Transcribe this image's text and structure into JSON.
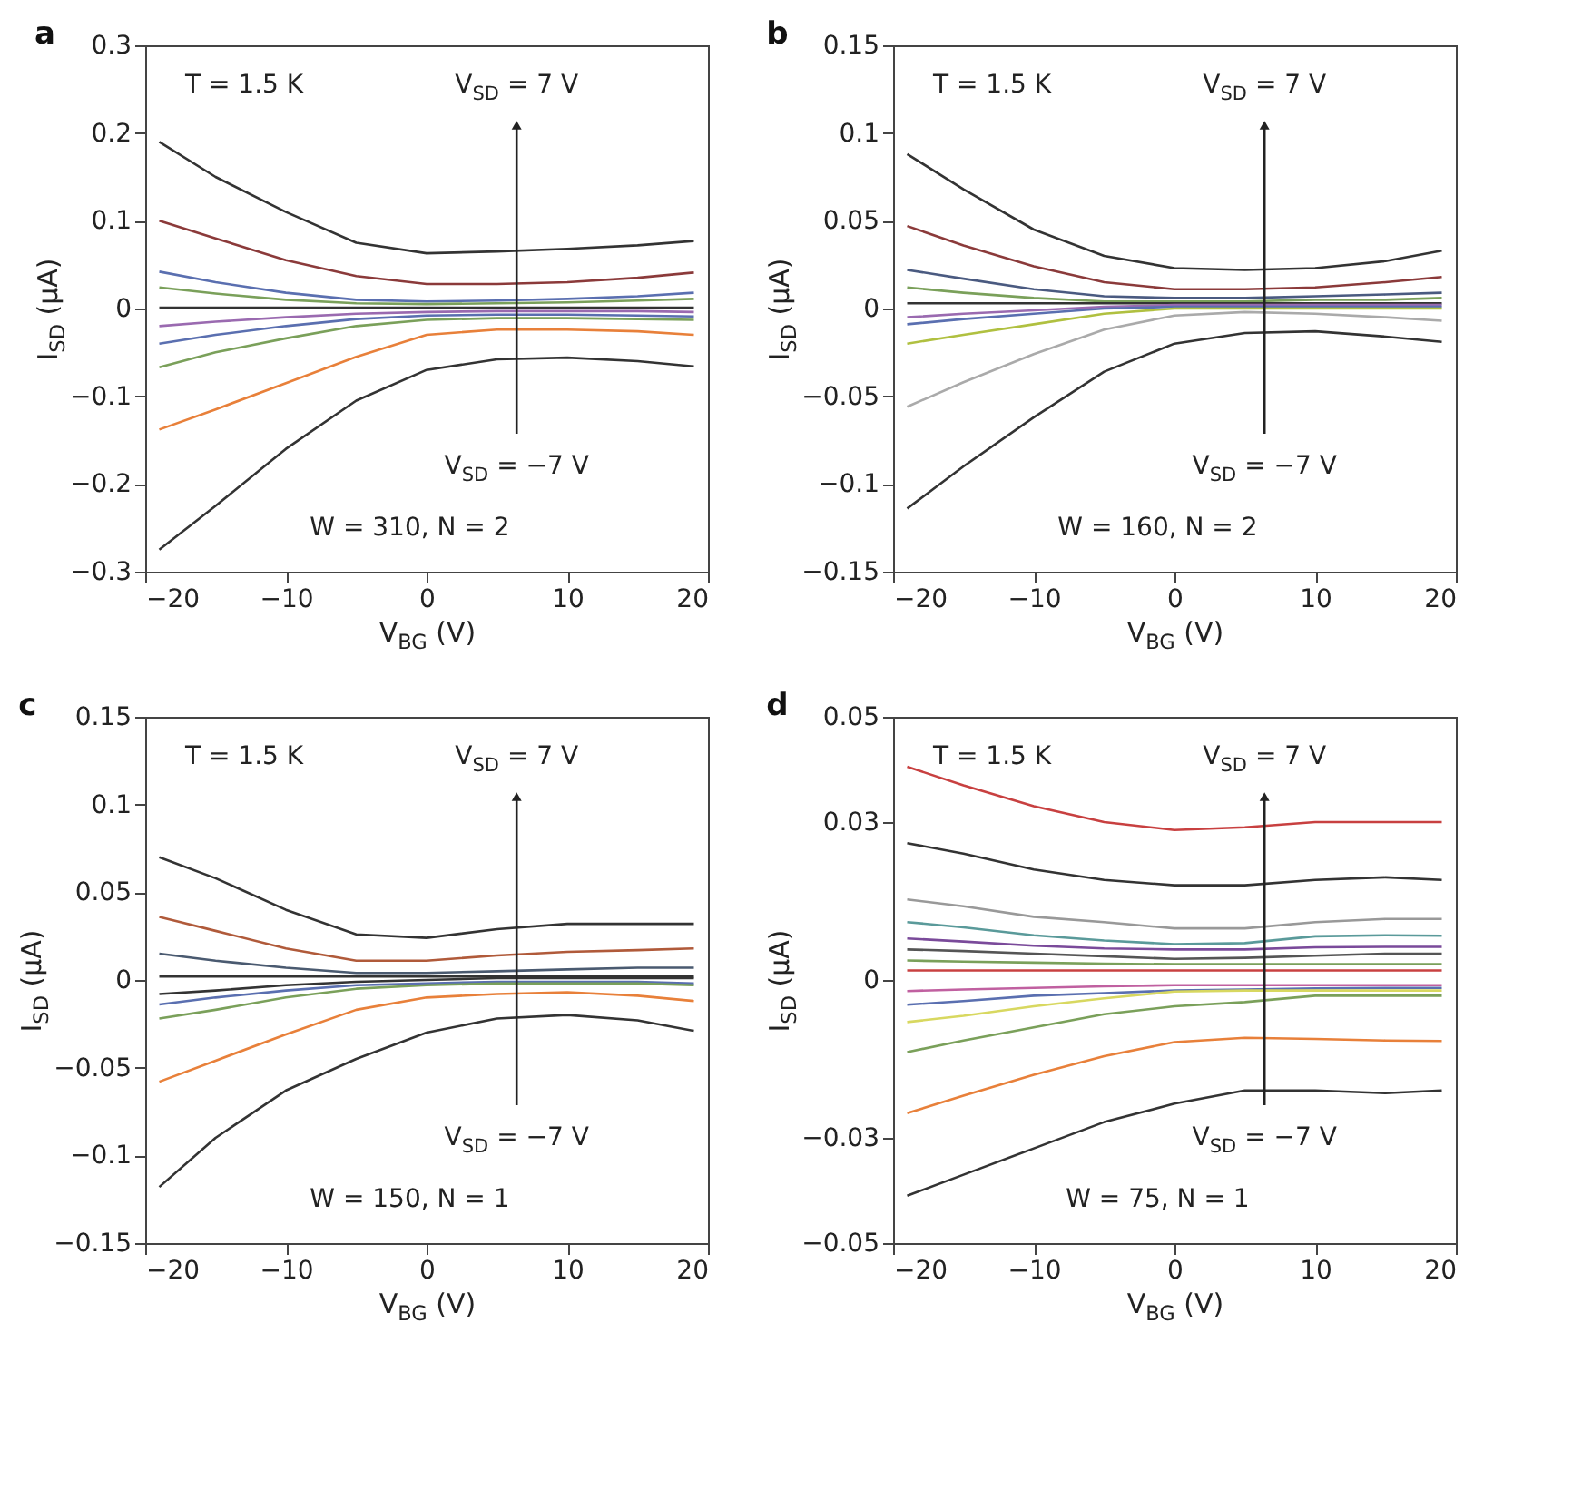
{
  "chart_data": [
    {
      "type": "line",
      "title": "a",
      "xlabel": "V$_{BG}$ (V)",
      "ylabel": "I$_{SD}$ (μA)",
      "xlim": [
        -20,
        20
      ],
      "xticks": [
        -20,
        -10,
        0,
        10,
        20
      ],
      "ylim": [
        -0.3,
        0.3
      ],
      "yticks": [
        -0.3,
        -0.2,
        -0.1,
        0,
        0.1,
        0.2,
        0.3
      ],
      "x": [
        -19,
        -15,
        -10,
        -5,
        0,
        5,
        10,
        15,
        19
      ],
      "series": [
        {
          "color": "#333333",
          "values": [
            0.19,
            0.15,
            0.11,
            0.075,
            0.063,
            0.065,
            0.068,
            0.072,
            0.077
          ]
        },
        {
          "color": "#8b3a3a",
          "values": [
            0.1,
            0.08,
            0.055,
            0.037,
            0.028,
            0.028,
            0.03,
            0.035,
            0.041
          ]
        },
        {
          "color": "#5a6fb0",
          "values": [
            0.042,
            0.03,
            0.018,
            0.01,
            0.008,
            0.009,
            0.011,
            0.014,
            0.018
          ]
        },
        {
          "color": "#7aa05a",
          "values": [
            0.024,
            0.017,
            0.01,
            0.006,
            0.005,
            0.006,
            0.007,
            0.009,
            0.011
          ]
        },
        {
          "color": "#333333",
          "values": [
            0.001,
            0.001,
            0.001,
            0.001,
            0.001,
            0.001,
            0.001,
            0.001,
            0.001
          ]
        },
        {
          "color": "#9a6ab0",
          "values": [
            -0.02,
            -0.015,
            -0.01,
            -0.006,
            -0.004,
            -0.003,
            -0.003,
            -0.003,
            -0.004
          ]
        },
        {
          "color": "#5a6fb0",
          "values": [
            -0.04,
            -0.03,
            -0.02,
            -0.012,
            -0.008,
            -0.007,
            -0.007,
            -0.008,
            -0.009
          ]
        },
        {
          "color": "#7aa05a",
          "values": [
            -0.067,
            -0.05,
            -0.034,
            -0.02,
            -0.013,
            -0.011,
            -0.011,
            -0.012,
            -0.013
          ]
        },
        {
          "color": "#e8803a",
          "values": [
            -0.138,
            -0.115,
            -0.085,
            -0.055,
            -0.03,
            -0.024,
            -0.024,
            -0.026,
            -0.03
          ]
        },
        {
          "color": "#333333",
          "values": [
            -0.275,
            -0.225,
            -0.16,
            -0.105,
            -0.07,
            -0.058,
            -0.056,
            -0.06,
            -0.066
          ]
        }
      ],
      "annotations": [
        "T = 1.5 K",
        "V$_{SD}$ = 7 V",
        "V$_{SD}$ = −7 V",
        "W = 310, N = 2"
      ]
    },
    {
      "type": "line",
      "title": "b",
      "xlabel": "V$_{BG}$ (V)",
      "ylabel": "I$_{SD}$ (μA)",
      "xlim": [
        -20,
        20
      ],
      "xticks": [
        -20,
        -10,
        0,
        10,
        20
      ],
      "ylim": [
        -0.15,
        0.15
      ],
      "yticks": [
        -0.15,
        -0.1,
        -0.05,
        0,
        0.05,
        0.1,
        0.15
      ],
      "x": [
        -19,
        -15,
        -10,
        -5,
        0,
        5,
        10,
        15,
        19
      ],
      "series": [
        {
          "color": "#333333",
          "values": [
            0.088,
            0.068,
            0.045,
            0.03,
            0.023,
            0.022,
            0.023,
            0.027,
            0.033
          ]
        },
        {
          "color": "#8b3a3a",
          "values": [
            0.047,
            0.036,
            0.024,
            0.015,
            0.011,
            0.011,
            0.012,
            0.015,
            0.018
          ]
        },
        {
          "color": "#4a5a80",
          "values": [
            0.022,
            0.017,
            0.011,
            0.007,
            0.006,
            0.006,
            0.007,
            0.008,
            0.009
          ]
        },
        {
          "color": "#7aa05a",
          "values": [
            0.012,
            0.009,
            0.006,
            0.004,
            0.004,
            0.004,
            0.005,
            0.005,
            0.006
          ]
        },
        {
          "color": "#333333",
          "values": [
            0.003,
            0.003,
            0.003,
            0.003,
            0.003,
            0.003,
            0.003,
            0.003,
            0.003
          ]
        },
        {
          "color": "#9a6ab0",
          "values": [
            -0.005,
            -0.003,
            -0.001,
            0.001,
            0.002,
            0.002,
            0.002,
            0.002,
            0.002
          ]
        },
        {
          "color": "#5a6fb0",
          "values": [
            -0.009,
            -0.006,
            -0.003,
            0,
            0.001,
            0.001,
            0.001,
            0.001,
            0.001
          ]
        },
        {
          "color": "#b0c040",
          "values": [
            -0.02,
            -0.015,
            -0.009,
            -0.003,
            0,
            0,
            0,
            0,
            0
          ]
        },
        {
          "color": "#aaaaaa",
          "values": [
            -0.056,
            -0.042,
            -0.026,
            -0.012,
            -0.004,
            -0.002,
            -0.003,
            -0.005,
            -0.007
          ]
        },
        {
          "color": "#333333",
          "values": [
            -0.114,
            -0.09,
            -0.062,
            -0.036,
            -0.02,
            -0.014,
            -0.013,
            -0.016,
            -0.019
          ]
        }
      ],
      "annotations": [
        "T = 1.5 K",
        "V$_{SD}$ = 7 V",
        "V$_{SD}$ = −7 V",
        "W = 160, N = 2"
      ]
    },
    {
      "type": "line",
      "title": "c",
      "xlabel": "V$_{BG}$ (V)",
      "ylabel": "I$_{SD}$ (μA)",
      "xlim": [
        -20,
        20
      ],
      "xticks": [
        -20,
        -10,
        0,
        10,
        20
      ],
      "ylim": [
        -0.15,
        0.15
      ],
      "yticks": [
        -0.15,
        -0.1,
        -0.05,
        0,
        0.05,
        0.1,
        0.15
      ],
      "x": [
        -19,
        -15,
        -10,
        -5,
        0,
        5,
        10,
        15,
        19
      ],
      "series": [
        {
          "color": "#333333",
          "values": [
            0.07,
            0.058,
            0.04,
            0.026,
            0.024,
            0.029,
            0.032,
            0.032,
            0.032
          ]
        },
        {
          "color": "#b05a3a",
          "values": [
            0.036,
            0.028,
            0.018,
            0.011,
            0.011,
            0.014,
            0.016,
            0.017,
            0.018
          ]
        },
        {
          "color": "#4a5a70",
          "values": [
            0.015,
            0.011,
            0.007,
            0.004,
            0.004,
            0.005,
            0.006,
            0.007,
            0.007
          ]
        },
        {
          "color": "#333333",
          "values": [
            0.002,
            0.002,
            0.002,
            0.002,
            0.002,
            0.002,
            0.002,
            0.002,
            0.002
          ]
        },
        {
          "color": "#333333",
          "values": [
            -0.008,
            -0.006,
            -0.003,
            -0.001,
            0,
            0.001,
            0.001,
            0.001,
            0.001
          ]
        },
        {
          "color": "#5a6fb0",
          "values": [
            -0.014,
            -0.01,
            -0.006,
            -0.003,
            -0.002,
            -0.001,
            -0.001,
            -0.001,
            -0.002
          ]
        },
        {
          "color": "#7aa05a",
          "values": [
            -0.022,
            -0.017,
            -0.01,
            -0.005,
            -0.003,
            -0.002,
            -0.002,
            -0.002,
            -0.003
          ]
        },
        {
          "color": "#e8803a",
          "values": [
            -0.058,
            -0.046,
            -0.031,
            -0.017,
            -0.01,
            -0.008,
            -0.007,
            -0.009,
            -0.012
          ]
        },
        {
          "color": "#333333",
          "values": [
            -0.118,
            -0.09,
            -0.063,
            -0.045,
            -0.03,
            -0.022,
            -0.02,
            -0.023,
            -0.029
          ]
        }
      ],
      "annotations": [
        "T = 1.5 K",
        "V$_{SD}$ = 7 V",
        "V$_{SD}$ = −7 V",
        "W = 150, N = 1"
      ]
    },
    {
      "type": "line",
      "title": "d",
      "xlabel": "V$_{BG}$ (V)",
      "ylabel": "I$_{SD}$ (μA)",
      "xlim": [
        -20,
        20
      ],
      "xticks": [
        -20,
        -10,
        0,
        10,
        20
      ],
      "ylim": [
        -0.05,
        0.05
      ],
      "yticks": [
        -0.05,
        -0.03,
        0,
        0.03,
        0.05
      ],
      "x": [
        -19,
        -15,
        -10,
        -5,
        0,
        5,
        10,
        15,
        19
      ],
      "series": [
        {
          "color": "#c84040",
          "values": [
            0.0405,
            0.037,
            0.033,
            0.03,
            0.0285,
            0.029,
            0.03,
            0.03,
            0.03
          ]
        },
        {
          "color": "#333333",
          "values": [
            0.026,
            0.024,
            0.021,
            0.019,
            0.018,
            0.018,
            0.019,
            0.0195,
            0.019
          ]
        },
        {
          "color": "#999999",
          "values": [
            0.0153,
            0.014,
            0.012,
            0.011,
            0.0098,
            0.0098,
            0.011,
            0.0116,
            0.0116
          ]
        },
        {
          "color": "#5a9a9a",
          "values": [
            0.011,
            0.01,
            0.0085,
            0.0075,
            0.0068,
            0.007,
            0.0083,
            0.0085,
            0.0084
          ]
        },
        {
          "color": "#7a4a9a",
          "values": [
            0.0079,
            0.0073,
            0.0065,
            0.006,
            0.0058,
            0.0058,
            0.0062,
            0.0063,
            0.0063
          ]
        },
        {
          "color": "#555555",
          "values": [
            0.0058,
            0.0055,
            0.005,
            0.0045,
            0.004,
            0.0042,
            0.0046,
            0.005,
            0.005
          ]
        },
        {
          "color": "#7aa05a",
          "values": [
            0.0037,
            0.0035,
            0.0033,
            0.0031,
            0.003,
            0.003,
            0.003,
            0.003,
            0.003
          ]
        },
        {
          "color": "#c84040",
          "values": [
            0.0018,
            0.0018,
            0.0018,
            0.0018,
            0.0018,
            0.0018,
            0.0018,
            0.0018,
            0.0018
          ]
        },
        {
          "color": "#c060a0",
          "values": [
            -0.0021,
            -0.0018,
            -0.0015,
            -0.0012,
            -0.001,
            -0.001,
            -0.001,
            -0.001,
            -0.001
          ]
        },
        {
          "color": "#5a6fb0",
          "values": [
            -0.0047,
            -0.004,
            -0.003,
            -0.0025,
            -0.002,
            -0.0018,
            -0.0016,
            -0.0015,
            -0.0015
          ]
        },
        {
          "color": "#d8d860",
          "values": [
            -0.008,
            -0.0068,
            -0.005,
            -0.0035,
            -0.0022,
            -0.002,
            -0.002,
            -0.002,
            -0.002
          ]
        },
        {
          "color": "#7aa05a",
          "values": [
            -0.0137,
            -0.0115,
            -0.009,
            -0.0065,
            -0.005,
            -0.0042,
            -0.003,
            -0.003,
            -0.003
          ]
        },
        {
          "color": "#e8803a",
          "values": [
            -0.0253,
            -0.022,
            -0.018,
            -0.0145,
            -0.0118,
            -0.011,
            -0.0112,
            -0.0115,
            -0.0116
          ]
        },
        {
          "color": "#333333",
          "values": [
            -0.041,
            -0.037,
            -0.032,
            -0.027,
            -0.0235,
            -0.021,
            -0.021,
            -0.0215,
            -0.021
          ]
        }
      ],
      "annotations": [
        "T = 1.5 K",
        "V$_{SD}$ = 7 V",
        "V$_{SD}$ = −7 V",
        "W = 75, N = 1"
      ]
    }
  ]
}
